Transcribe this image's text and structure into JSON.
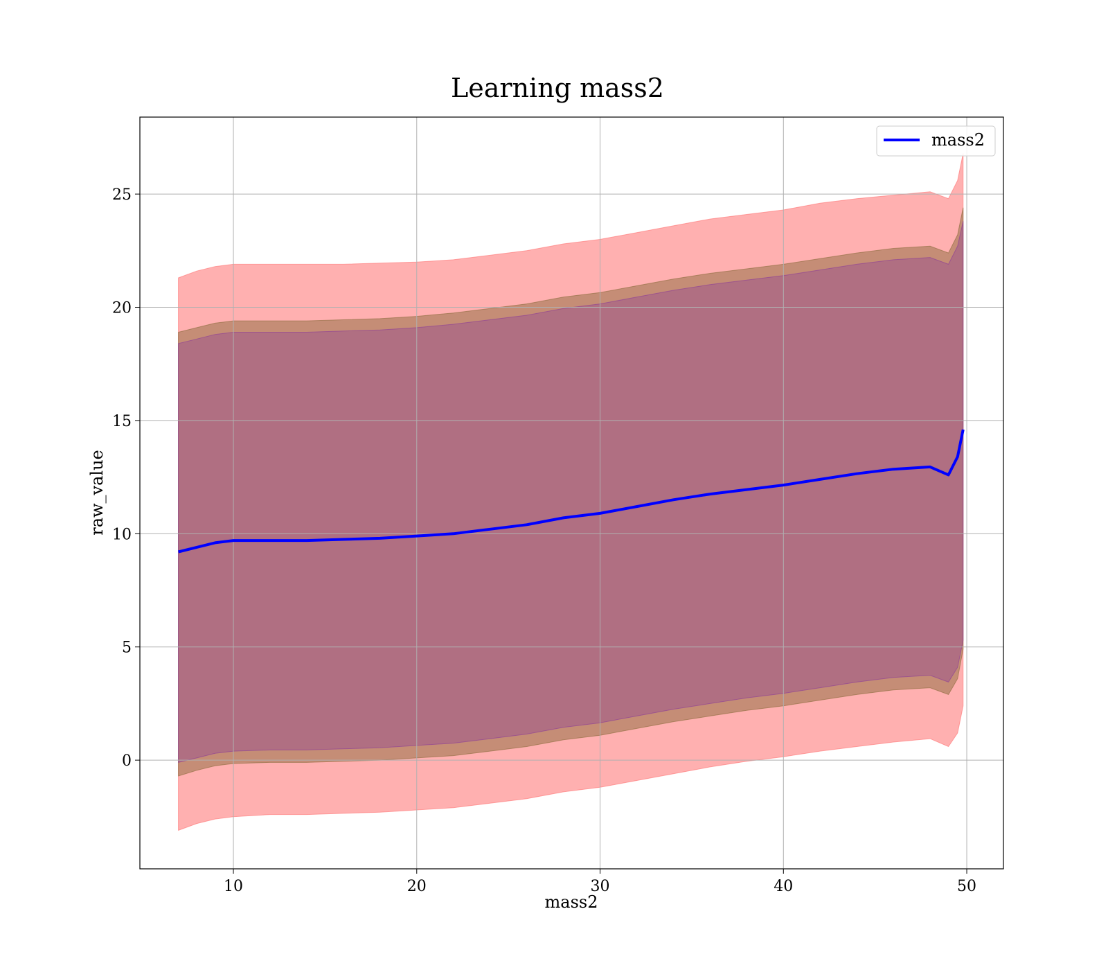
{
  "chart_data": {
    "type": "line",
    "title": "Learning mass2",
    "xlabel": "mass2",
    "ylabel": "raw_value",
    "xlim": [
      4.9,
      52.0
    ],
    "ylim": [
      -4.8,
      28.4
    ],
    "x_ticks": [
      10,
      20,
      30,
      40,
      50
    ],
    "y_ticks": [
      0,
      5,
      10,
      15,
      20,
      25
    ],
    "x_tick_labels": [
      "10",
      "20",
      "30",
      "40",
      "50"
    ],
    "y_tick_labels": [
      "0",
      "5",
      "10",
      "15",
      "20",
      "25"
    ],
    "grid": true,
    "legend_position": "top-right",
    "series": [
      {
        "name": "mass2",
        "color": "#0000ff",
        "x": [
          7,
          8,
          9,
          10,
          12,
          14,
          16,
          18,
          20,
          22,
          24,
          26,
          28,
          30,
          32,
          34,
          36,
          38,
          40,
          42,
          44,
          46,
          48,
          49,
          49.5,
          49.8
        ],
        "y": [
          9.2,
          9.4,
          9.6,
          9.7,
          9.7,
          9.7,
          9.75,
          9.8,
          9.9,
          10.0,
          10.2,
          10.4,
          10.7,
          10.9,
          11.2,
          11.5,
          11.75,
          11.95,
          12.15,
          12.4,
          12.65,
          12.85,
          12.95,
          12.6,
          13.4,
          14.6
        ]
      }
    ],
    "bands": [
      {
        "color": "#ff6f6f",
        "opacity": 0.55,
        "x": [
          7,
          8,
          9,
          10,
          12,
          14,
          16,
          18,
          20,
          22,
          24,
          26,
          28,
          30,
          32,
          34,
          36,
          38,
          40,
          42,
          44,
          46,
          48,
          49,
          49.5,
          49.8
        ],
        "lower": [
          -3.1,
          -2.8,
          -2.6,
          -2.5,
          -2.4,
          -2.4,
          -2.35,
          -2.3,
          -2.2,
          -2.1,
          -1.9,
          -1.7,
          -1.4,
          -1.2,
          -0.9,
          -0.6,
          -0.3,
          -0.05,
          0.15,
          0.4,
          0.6,
          0.8,
          0.95,
          0.6,
          1.2,
          2.4
        ],
        "upper": [
          21.3,
          21.6,
          21.8,
          21.9,
          21.9,
          21.9,
          21.9,
          21.95,
          22.0,
          22.1,
          22.3,
          22.5,
          22.8,
          23.0,
          23.3,
          23.6,
          23.9,
          24.1,
          24.3,
          24.6,
          24.8,
          24.95,
          25.1,
          24.8,
          25.6,
          26.8
        ]
      },
      {
        "color": "#8b6a3c",
        "opacity": 0.5,
        "x": [
          7,
          8,
          9,
          10,
          12,
          14,
          16,
          18,
          20,
          22,
          24,
          26,
          28,
          30,
          32,
          34,
          36,
          38,
          40,
          42,
          44,
          46,
          48,
          49,
          49.5,
          49.8
        ],
        "lower": [
          -0.7,
          -0.45,
          -0.25,
          -0.15,
          -0.1,
          -0.1,
          -0.05,
          0.0,
          0.1,
          0.2,
          0.4,
          0.6,
          0.9,
          1.1,
          1.4,
          1.7,
          1.95,
          2.2,
          2.4,
          2.65,
          2.9,
          3.1,
          3.2,
          2.9,
          3.6,
          4.9
        ],
        "upper": [
          18.9,
          19.1,
          19.3,
          19.4,
          19.4,
          19.4,
          19.45,
          19.5,
          19.6,
          19.75,
          19.95,
          20.15,
          20.45,
          20.65,
          20.95,
          21.25,
          21.5,
          21.7,
          21.9,
          22.15,
          22.4,
          22.6,
          22.7,
          22.4,
          23.2,
          24.4
        ]
      },
      {
        "color": "#8a3a9a",
        "opacity": 0.35,
        "x": [
          7,
          8,
          9,
          10,
          12,
          14,
          16,
          18,
          20,
          22,
          24,
          26,
          28,
          30,
          32,
          34,
          36,
          38,
          40,
          42,
          44,
          46,
          48,
          49,
          49.5,
          49.8
        ],
        "lower": [
          -0.1,
          0.1,
          0.3,
          0.4,
          0.45,
          0.45,
          0.5,
          0.55,
          0.65,
          0.75,
          0.95,
          1.15,
          1.45,
          1.65,
          1.95,
          2.25,
          2.5,
          2.75,
          2.95,
          3.2,
          3.45,
          3.65,
          3.75,
          3.45,
          4.1,
          5.3
        ],
        "upper": [
          18.4,
          18.6,
          18.8,
          18.9,
          18.9,
          18.9,
          18.95,
          19.0,
          19.1,
          19.25,
          19.45,
          19.65,
          19.95,
          20.15,
          20.45,
          20.75,
          21.0,
          21.2,
          21.4,
          21.65,
          21.9,
          22.1,
          22.2,
          21.9,
          22.7,
          23.8
        ]
      }
    ]
  }
}
